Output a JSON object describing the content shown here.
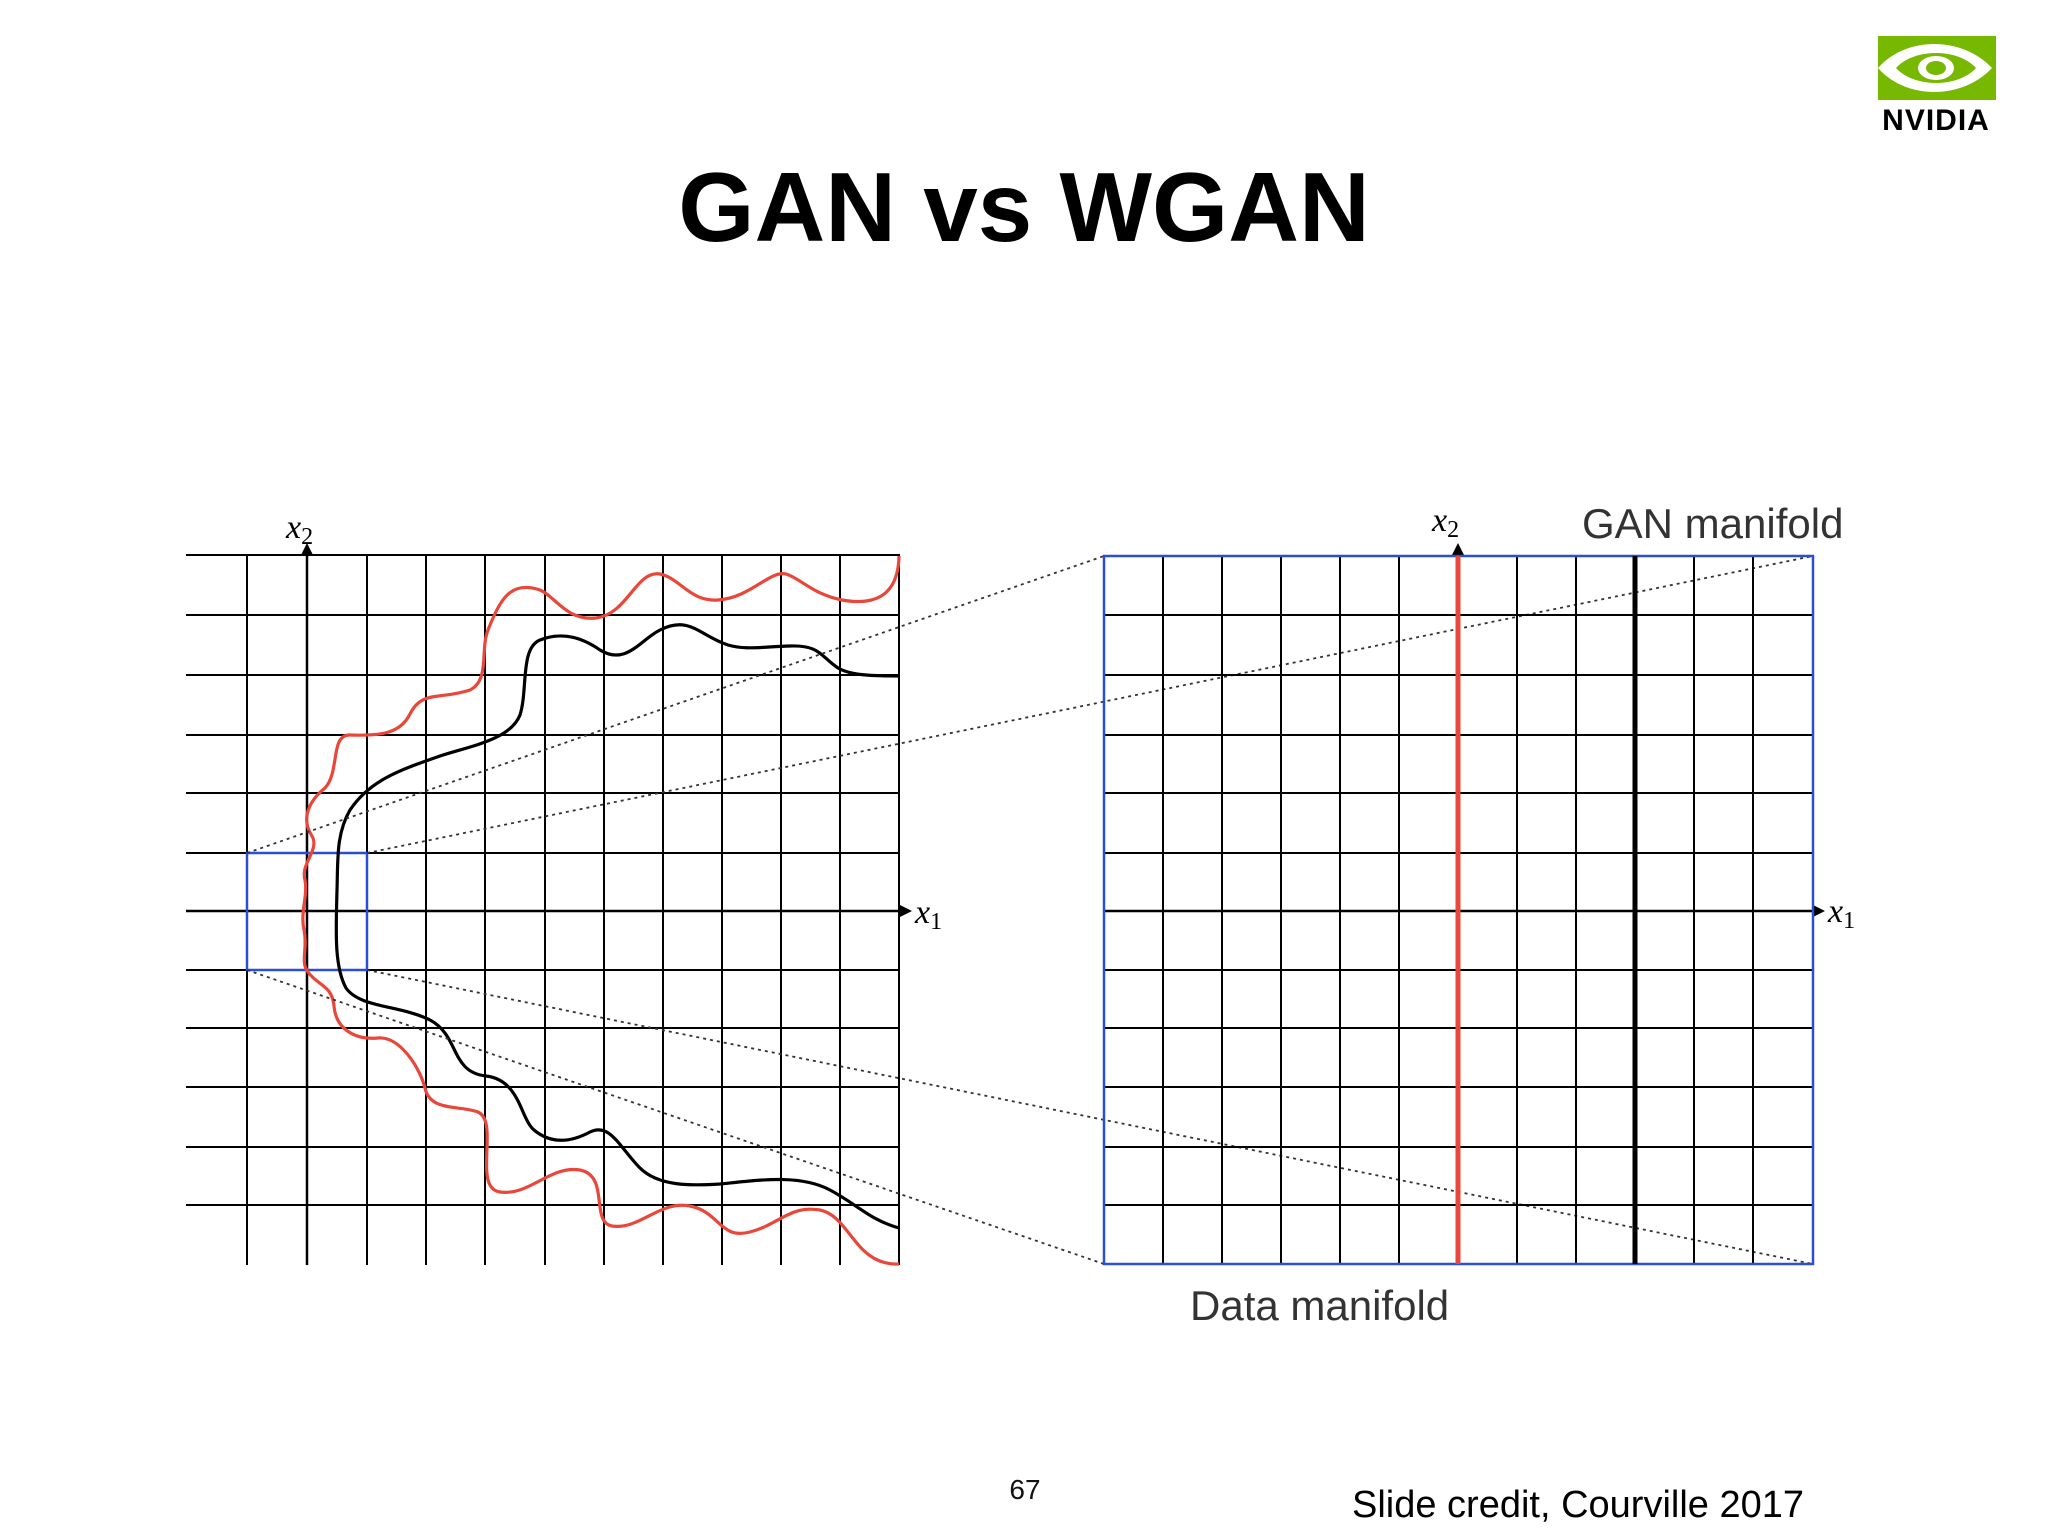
{
  "slide": {
    "title": "GAN vs WGAN",
    "page_number": "67",
    "credit": "Slide credit, Courville 2017",
    "logo": {
      "icon": "nvidia-eye-icon",
      "text": "NVIDIA",
      "color": "#76b900"
    }
  },
  "diagram": {
    "left_panel": {
      "x_axis_label": "x",
      "x_axis_subscript": "1",
      "y_axis_label": "x",
      "y_axis_subscript": "2"
    },
    "right_panel": {
      "x_axis_label": "x",
      "x_axis_subscript": "1",
      "y_axis_label": "x",
      "y_axis_subscript": "2",
      "gan_manifold_label": "GAN manifold",
      "data_manifold_label": "Data manifold"
    },
    "colors": {
      "data_manifold": "#e8473a",
      "gan_manifold": "#000000",
      "zoom_box": "#2a4fd6",
      "grid": "#000000"
    }
  }
}
